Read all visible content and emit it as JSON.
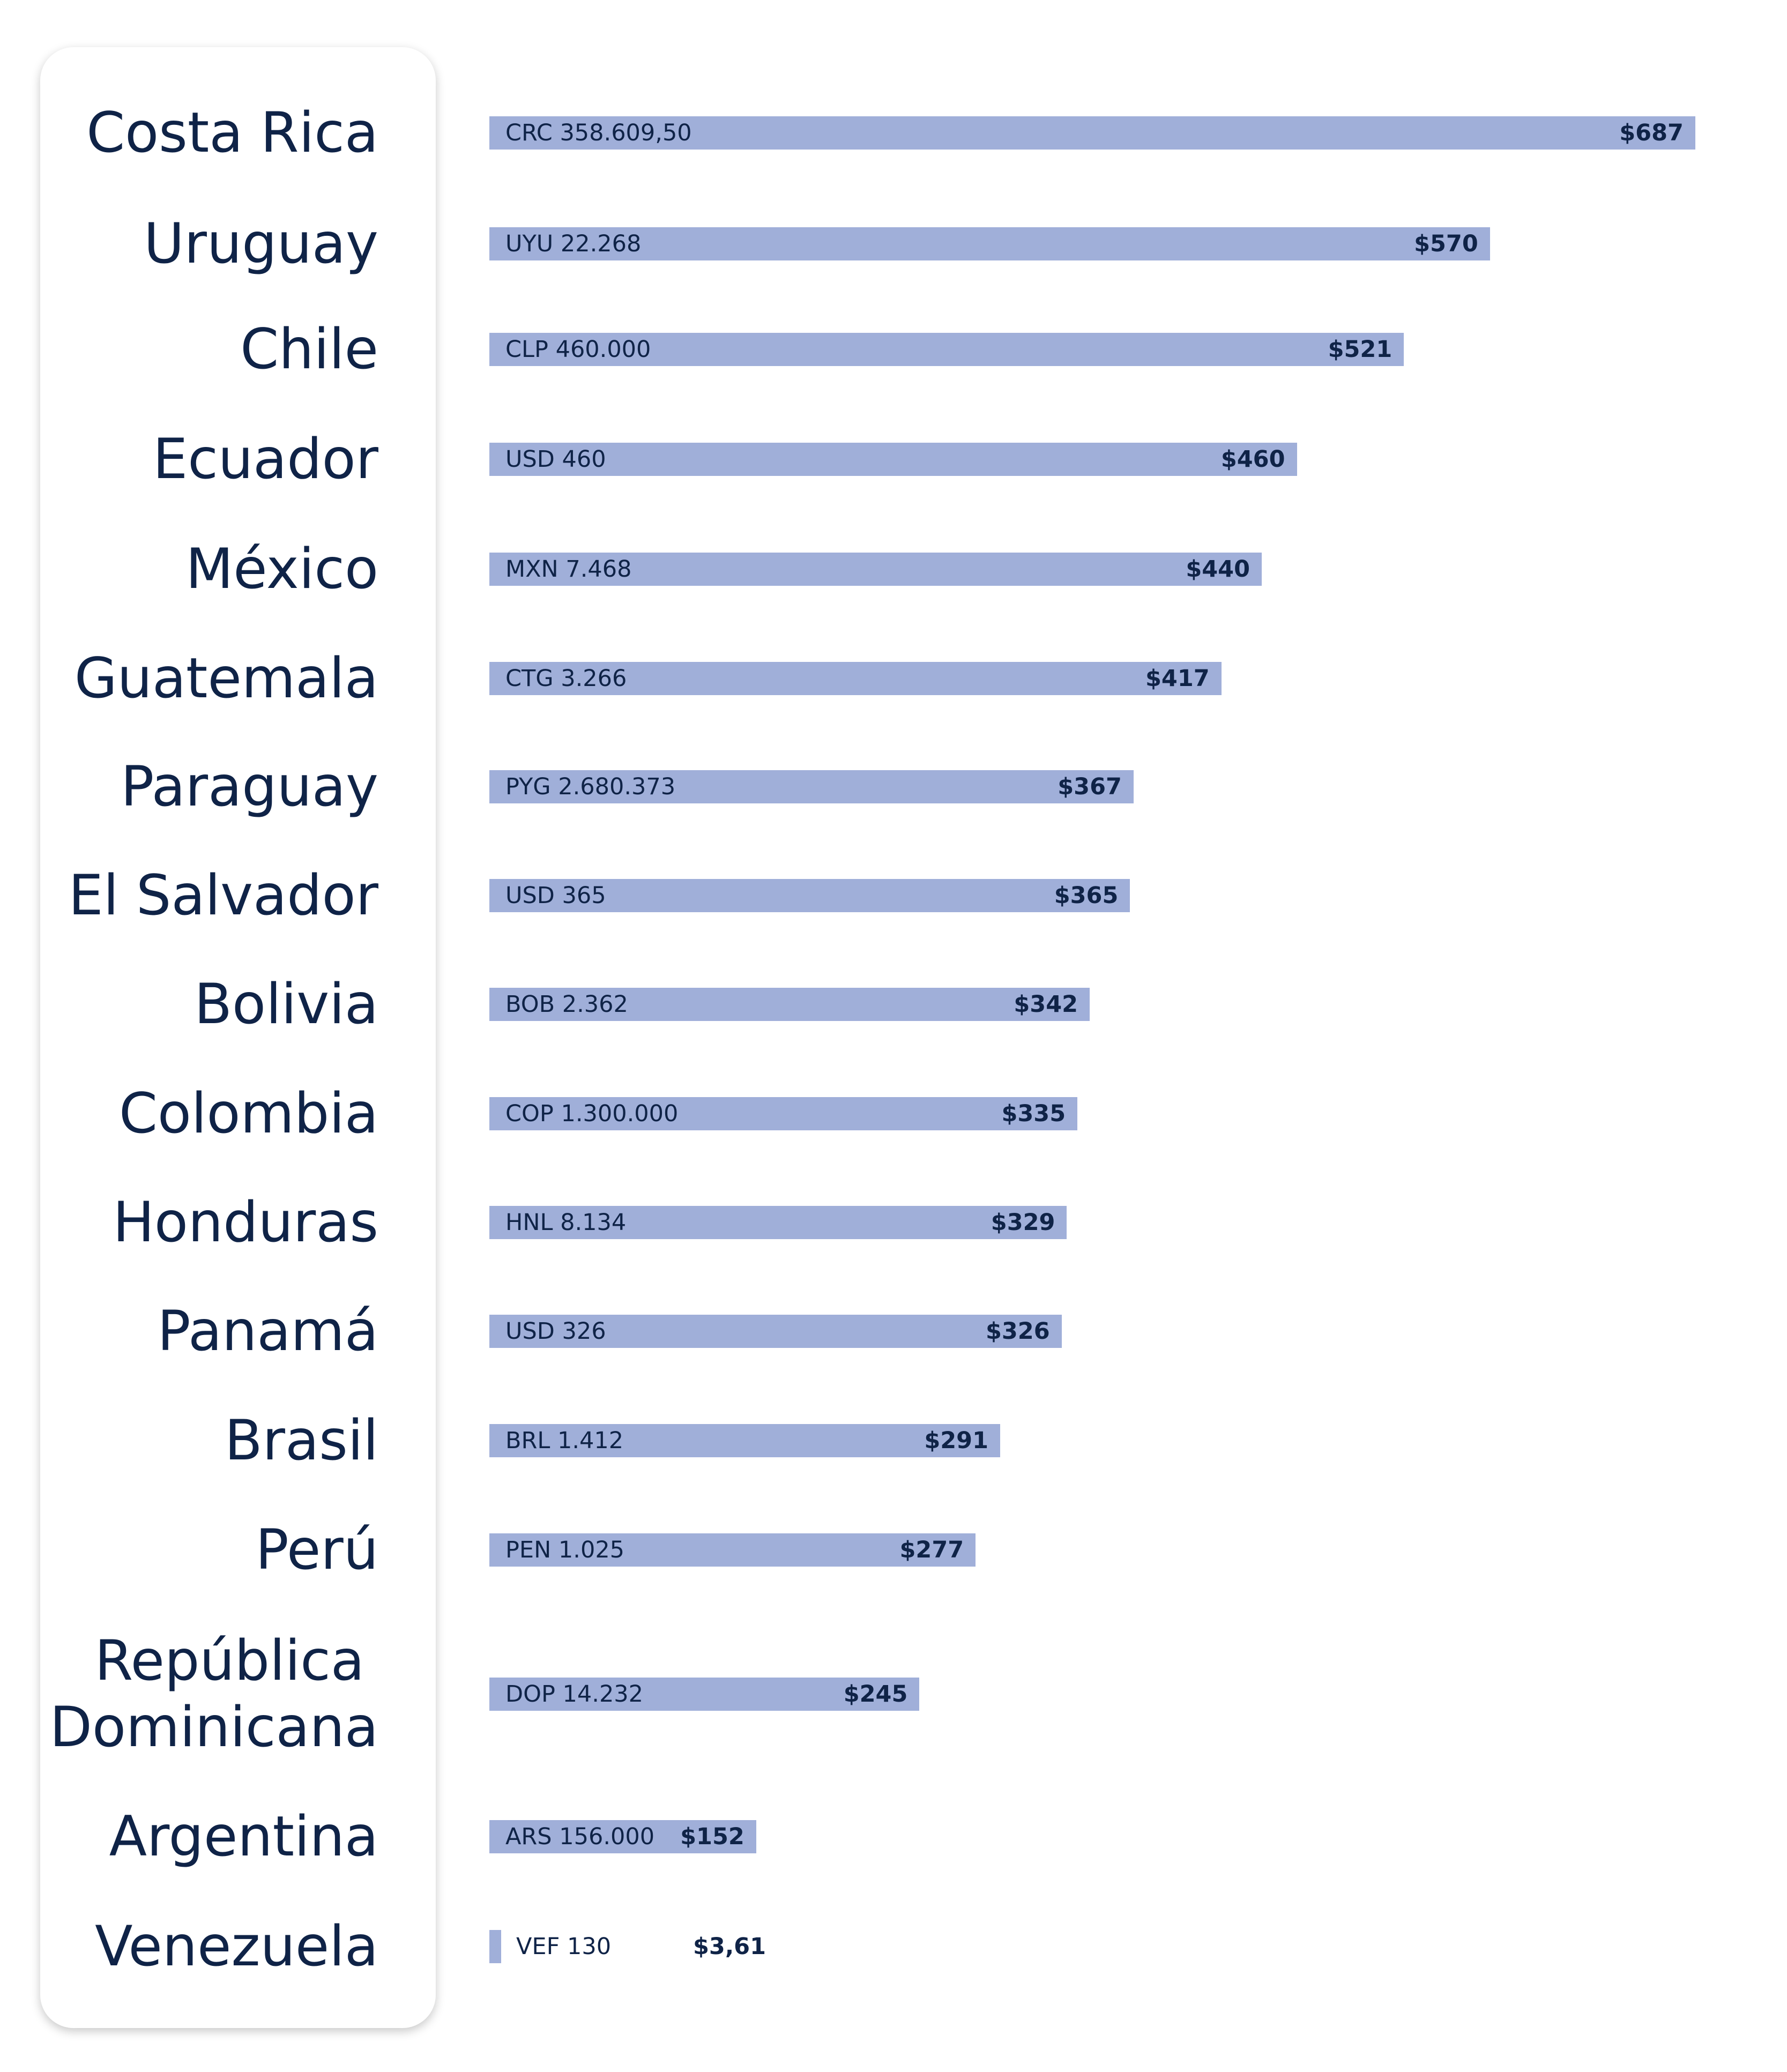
{
  "chart_data": {
    "type": "bar",
    "orientation": "horizontal",
    "categories": [
      "Costa Rica",
      "Uruguay",
      "Chile",
      "Ecuador",
      "México",
      "Guatemala",
      "Paraguay",
      "El Salvador",
      "Bolivia",
      "Colombia",
      "Honduras",
      "Panamá",
      "Brasil",
      "Perú",
      "República Dominicana",
      "Argentina",
      "Venezuela"
    ],
    "values": [
      687,
      570,
      521,
      460,
      440,
      417,
      367,
      365,
      342,
      335,
      329,
      326,
      291,
      277,
      245,
      152,
      3.61
    ],
    "local_labels": [
      "CRC 358.609,50",
      "UYU 22.268",
      "CLP 460.000",
      "USD 460",
      "MXN 7.468",
      "CTG 3.266",
      "PYG 2.680.373",
      "USD 365",
      "BOB 2.362",
      "COP 1.300.000",
      "HNL 8.134",
      "USD 326",
      "BRL 1.412",
      "PEN 1.025",
      "DOP 14.232",
      "ARS 156.000",
      "VEF 130"
    ],
    "usd_labels": [
      "$687",
      "$570",
      "$521",
      "$460",
      "$440",
      "$417",
      "$367",
      "$365",
      "$342",
      "$335",
      "$329",
      "$326",
      "$291",
      "$277",
      "$245",
      "$152",
      "$3,61"
    ],
    "colors": {
      "bar": "#a0afd9",
      "text": "#0f2347"
    },
    "grid": false,
    "legend": "none"
  }
}
